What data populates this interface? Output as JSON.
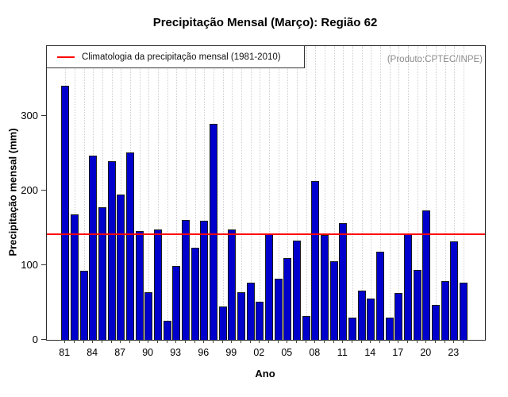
{
  "chart_data": {
    "type": "bar",
    "title": "Precipitação Mensal (Março): Região 62",
    "xlabel": "Ano",
    "ylabel": "Precipitação mensal (mm)",
    "legend": {
      "label": "Climatologia da precipitação mensal (1981-2010)"
    },
    "watermark": "(Produto:CPTEC/INPE)",
    "climatology_mm": 142,
    "ylim": [
      0,
      393
    ],
    "yticks": [
      0,
      100,
      200,
      300
    ],
    "xtick_labels": [
      "81",
      "84",
      "87",
      "90",
      "93",
      "96",
      "99",
      "02",
      "05",
      "08",
      "11",
      "14",
      "17",
      "20",
      "23"
    ],
    "xtick_every": 3,
    "grid": "vertical-dotted",
    "legend_position": "top-left",
    "years": [
      1981,
      1982,
      1983,
      1984,
      1985,
      1986,
      1987,
      1988,
      1989,
      1990,
      1991,
      1992,
      1993,
      1994,
      1995,
      1996,
      1997,
      1998,
      1999,
      2000,
      2001,
      2002,
      2003,
      2004,
      2005,
      2006,
      2007,
      2008,
      2009,
      2010,
      2011,
      2012,
      2013,
      2014,
      2015,
      2016,
      2017,
      2018,
      2019,
      2020,
      2021,
      2022,
      2023,
      2024
    ],
    "values": [
      340,
      168,
      92,
      246,
      177,
      239,
      194,
      251,
      146,
      64,
      148,
      26,
      99,
      160,
      123,
      159,
      289,
      45,
      148,
      64,
      76,
      51,
      141,
      82,
      109,
      133,
      32,
      213,
      140,
      105,
      156,
      30,
      66,
      55,
      118,
      30,
      63,
      141,
      93,
      173,
      47,
      79,
      132,
      76
    ],
    "colors": {
      "bar_fill": "#0000cd",
      "bar_border": "#1a1a1a",
      "climatology_line": "#ff0000",
      "grid_line": "#cfcfcf",
      "frame": "#2b2b2b",
      "watermark_text": "#8c8c8c"
    }
  }
}
